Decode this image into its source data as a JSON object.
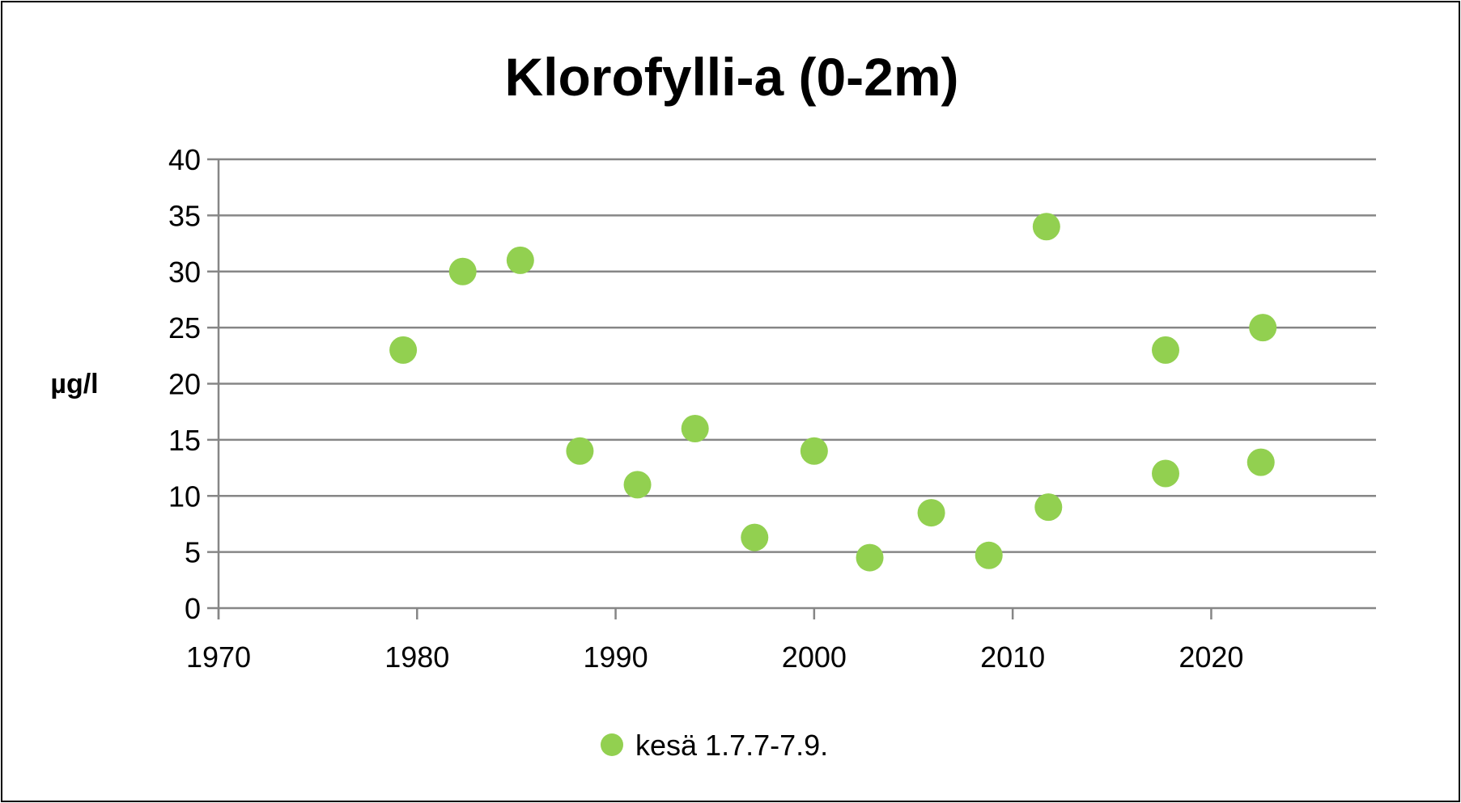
{
  "chart_data": {
    "type": "scatter",
    "title": "Klorofylli-a (0-2m)",
    "xlabel": "",
    "ylabel": "µg/l",
    "xlim": [
      1970,
      2028.3
    ],
    "ylim": [
      0,
      40
    ],
    "xticks": [
      1970,
      1980,
      1990,
      2000,
      2010,
      2020
    ],
    "yticks": [
      0,
      5,
      10,
      15,
      20,
      25,
      30,
      35,
      40
    ],
    "grid": true,
    "legend_position": "bottom",
    "series": [
      {
        "name": "kesä 1.7.7-7.9.",
        "color": "#92d050",
        "points": [
          [
            1979.3,
            23
          ],
          [
            1982.3,
            30
          ],
          [
            1985.2,
            31
          ],
          [
            1988.2,
            14
          ],
          [
            1991.1,
            11
          ],
          [
            1994.0,
            16
          ],
          [
            1997.0,
            6.3
          ],
          [
            2000.0,
            14
          ],
          [
            2002.8,
            4.5
          ],
          [
            2005.9,
            8.5
          ],
          [
            2008.8,
            4.7
          ],
          [
            2011.7,
            34
          ],
          [
            2011.8,
            9
          ],
          [
            2017.7,
            23
          ],
          [
            2017.7,
            12
          ],
          [
            2022.6,
            25
          ],
          [
            2022.5,
            13
          ]
        ]
      }
    ]
  }
}
